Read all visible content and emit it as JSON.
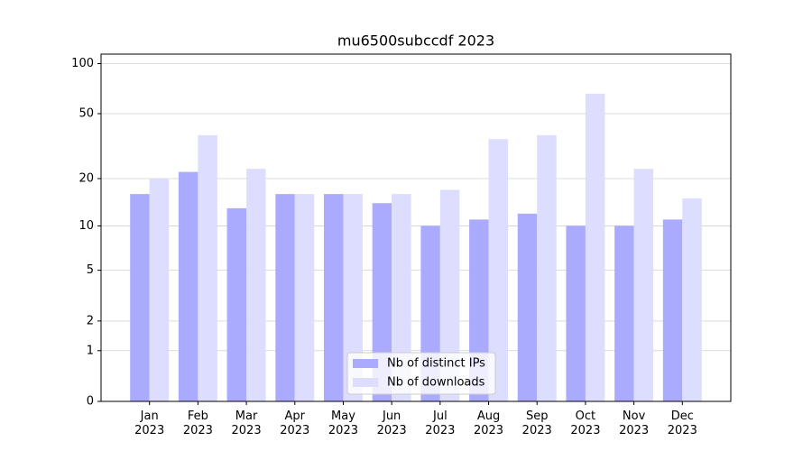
{
  "chart_data": {
    "type": "bar",
    "title": "mu6500subccdf 2023",
    "categories": [
      "Jan 2023",
      "Feb 2023",
      "Mar 2023",
      "Apr 2023",
      "May 2023",
      "Jun 2023",
      "Jul 2023",
      "Aug 2023",
      "Sep 2023",
      "Oct 2023",
      "Nov 2023",
      "Dec 2023"
    ],
    "series": [
      {
        "name": "Nb of distinct IPs",
        "color": "#aaaaff",
        "values": [
          16,
          22,
          13,
          16,
          16,
          14,
          10,
          11,
          12,
          10,
          10,
          11
        ]
      },
      {
        "name": "Nb of downloads",
        "color": "#ddddff",
        "values": [
          20,
          37,
          23,
          16,
          16,
          16,
          17,
          35,
          37,
          66,
          23,
          15
        ]
      }
    ],
    "yscale": "log1p",
    "ylim": [
      0,
      114
    ],
    "yticks": [
      0,
      1,
      2,
      5,
      10,
      20,
      50,
      100
    ],
    "grid": true,
    "legend": "lower center"
  }
}
